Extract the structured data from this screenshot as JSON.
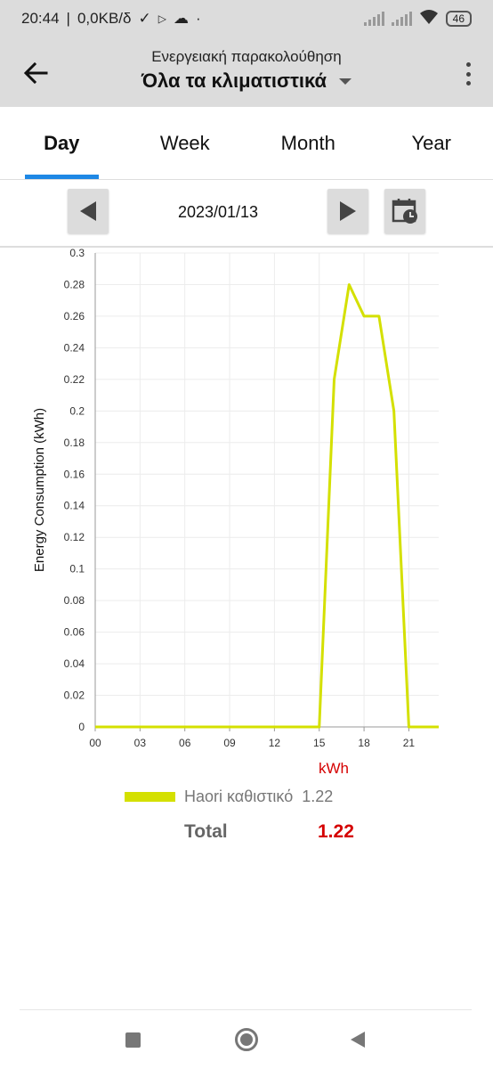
{
  "status_bar": {
    "time": "20:44",
    "net_speed": "0,0KB/δ",
    "battery": "46"
  },
  "app_bar": {
    "subtitle": "Ενεργειακή παρακολούθηση",
    "title": "Όλα τα κλιματιστικά"
  },
  "tabs": [
    {
      "label": "Day"
    },
    {
      "label": "Week"
    },
    {
      "label": "Month"
    },
    {
      "label": "Year"
    }
  ],
  "date_selector": {
    "date": "2023/01/13"
  },
  "chart_data": {
    "type": "line",
    "ylabel": "Energy Consumption (kWh)",
    "unit_label": "kWh",
    "x_tick_labels": [
      "00",
      "03",
      "06",
      "09",
      "12",
      "15",
      "18",
      "21"
    ],
    "y_tick_labels": [
      "0",
      "0.02",
      "0.04",
      "0.06",
      "0.08",
      "0.1",
      "0.12",
      "0.14",
      "0.16",
      "0.18",
      "0.2",
      "0.22",
      "0.24",
      "0.26",
      "0.28",
      "0.3"
    ],
    "xlim": [
      0,
      23
    ],
    "ylim": [
      0,
      0.3
    ],
    "grid": true,
    "series": [
      {
        "name": "Haori καθιστικό",
        "color": "#d4e000",
        "x": [
          0,
          15,
          16,
          17,
          18,
          19,
          20,
          21,
          23
        ],
        "values": [
          0,
          0,
          0.22,
          0.28,
          0.26,
          0.26,
          0.2,
          0,
          0
        ]
      }
    ]
  },
  "legend": {
    "name": "Haori καθιστικό",
    "value": "1.22",
    "color": "#d4e000"
  },
  "total": {
    "label": "Total",
    "value": "1.22"
  }
}
